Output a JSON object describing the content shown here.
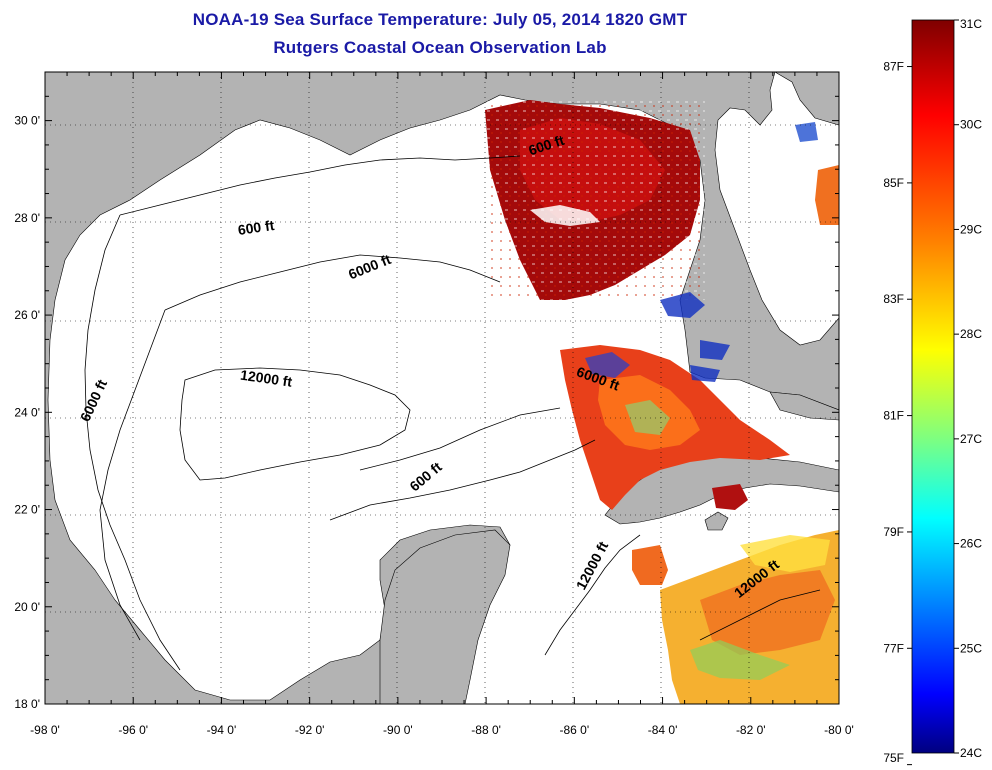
{
  "title": {
    "line1": "NOAA-19 Sea Surface Temperature:  July 05, 2014 1820 GMT",
    "line2": "Rutgers Coastal Ocean Observation Lab"
  },
  "map": {
    "lon_range": [
      -98,
      -80
    ],
    "lat_range": [
      18,
      31
    ],
    "lon_ticks": [
      {
        "value": -98,
        "label": "-98 0'"
      },
      {
        "value": -96,
        "label": "-96 0'"
      },
      {
        "value": -94,
        "label": "-94 0'"
      },
      {
        "value": -92,
        "label": "-92 0'"
      },
      {
        "value": -90,
        "label": "-90 0'"
      },
      {
        "value": -88,
        "label": "-88 0'"
      },
      {
        "value": -86,
        "label": "-86 0'"
      },
      {
        "value": -84,
        "label": "-84 0'"
      },
      {
        "value": -82,
        "label": "-82 0'"
      },
      {
        "value": -80,
        "label": "-80 0'"
      }
    ],
    "lat_ticks": [
      {
        "value": 18,
        "label": "18 0'"
      },
      {
        "value": 20,
        "label": "20 0'"
      },
      {
        "value": 22,
        "label": "22 0'"
      },
      {
        "value": 24,
        "label": "24 0'"
      },
      {
        "value": 26,
        "label": "26 0'"
      },
      {
        "value": 28,
        "label": "28 0'"
      },
      {
        "value": 30,
        "label": "30 0'"
      }
    ],
    "contour_labels": [
      {
        "text": "600 ft",
        "lon": -86.6,
        "lat": 29.4,
        "angle": -18
      },
      {
        "text": "600 ft",
        "lon": -93.2,
        "lat": 27.7,
        "angle": -8
      },
      {
        "text": "6000 ft",
        "lon": -90.6,
        "lat": 26.9,
        "angle": -22
      },
      {
        "text": "12000 ft",
        "lon": -93.0,
        "lat": 24.6,
        "angle": 8
      },
      {
        "text": "6000 ft",
        "lon": -96.8,
        "lat": 24.2,
        "angle": -65
      },
      {
        "text": "6000 ft",
        "lon": -85.5,
        "lat": 24.6,
        "angle": 20
      },
      {
        "text": "600 ft",
        "lon": -89.3,
        "lat": 22.6,
        "angle": -40
      },
      {
        "text": "12000 ft",
        "lon": -85.5,
        "lat": 20.8,
        "angle": -62
      },
      {
        "text": "12000 ft",
        "lon": -81.8,
        "lat": 20.5,
        "angle": -38
      }
    ]
  },
  "colorbar": {
    "celsius_labels": [
      "31C",
      "30C",
      "29C",
      "28C",
      "27C",
      "26C",
      "25C",
      "24C"
    ],
    "fahrenheit_labels": [
      "87F",
      "85F",
      "83F",
      "81F",
      "79F",
      "77F",
      "75F"
    ],
    "colors": [
      "#7f0000",
      "#ff0000",
      "#ff7f00",
      "#ffff00",
      "#7fff7f",
      "#00ffff",
      "#007fff",
      "#0000ff",
      "#00007f"
    ]
  }
}
